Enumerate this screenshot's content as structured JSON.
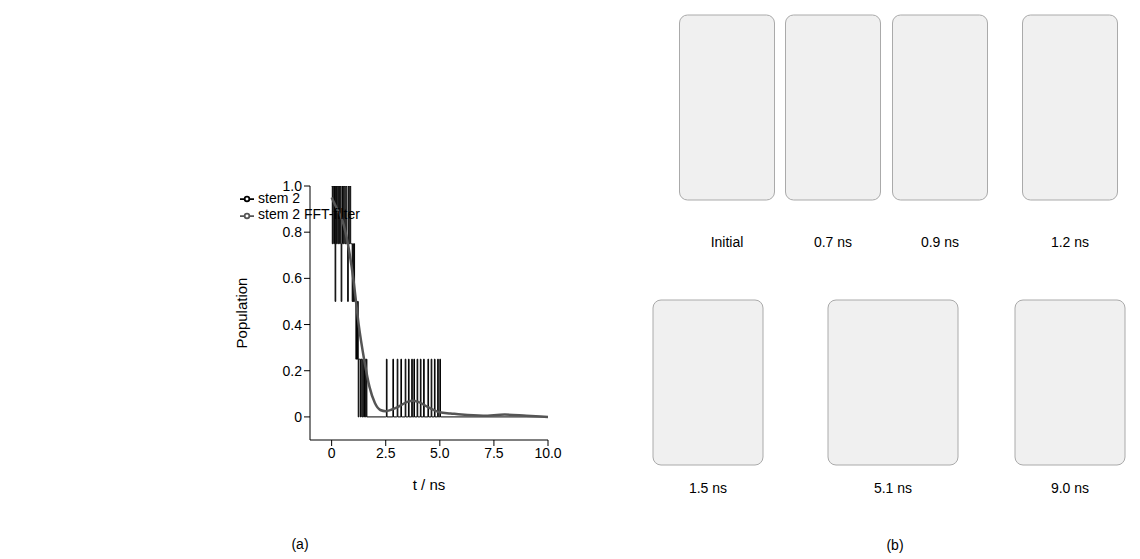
{
  "chart_data": {
    "type": "line",
    "xlabel": "t / ns",
    "ylabel": "Population",
    "xlim": [
      -1,
      10
    ],
    "xticks": [
      0,
      2.5,
      {
        "value": 5,
        "label": "5.0"
      },
      7.5,
      {
        "value": 10,
        "label": "10.0"
      }
    ],
    "ylim": [
      -0.1,
      1.0
    ],
    "yticks": [
      0,
      0.2,
      0.4,
      0.6,
      0.8,
      {
        "value": 1,
        "label": "1.0"
      }
    ],
    "grid": false,
    "legend": "top",
    "series": [
      {
        "name": "stem 2",
        "color": "#000000",
        "line_style": "step",
        "x": [
          0,
          0.03,
          0.06,
          0.1,
          0.13,
          0.16,
          0.19,
          0.22,
          0.26,
          0.3,
          0.33,
          0.37,
          0.4,
          0.44,
          0.47,
          0.5,
          0.54,
          0.58,
          0.62,
          0.66,
          0.7,
          0.74,
          0.77,
          0.8,
          0.84,
          0.88,
          0.92,
          0.95,
          0.98,
          1.0,
          1.03,
          1.06,
          1.1,
          1.12,
          1.15,
          1.18,
          1.2,
          1.23,
          1.26,
          1.3,
          1.33,
          1.36,
          1.4,
          1.44,
          1.48,
          1.52,
          1.56,
          1.6,
          1.63,
          2.5,
          2.53,
          2.56,
          2.8,
          2.83,
          2.86,
          3.0,
          3.03,
          3.06,
          3.2,
          3.23,
          3.4,
          3.43,
          3.55,
          3.58,
          3.7,
          3.73,
          3.8,
          3.83,
          3.95,
          3.98,
          4.1,
          4.13,
          4.25,
          4.28,
          4.45,
          4.48,
          4.6,
          4.63,
          4.75,
          4.78,
          4.9,
          4.93,
          5.0,
          5.03,
          10.0
        ],
        "values": [
          1.0,
          0.75,
          1.0,
          0.75,
          1.0,
          0.5,
          1.0,
          0.75,
          1.0,
          0.75,
          1.0,
          0.75,
          1.0,
          0.5,
          0.75,
          1.0,
          0.75,
          1.0,
          0.75,
          1.0,
          0.75,
          0.5,
          1.0,
          0.75,
          1.0,
          0.75,
          0.75,
          0.5,
          0.75,
          0.5,
          0.75,
          0.5,
          0.5,
          0.25,
          0.5,
          0.25,
          0.5,
          0.0,
          0.25,
          0.25,
          0.0,
          0.25,
          0.0,
          0.25,
          0.0,
          0.25,
          0.0,
          0.25,
          0.0,
          0.0,
          0.25,
          0.0,
          0.0,
          0.25,
          0.0,
          0.0,
          0.25,
          0.0,
          0.25,
          0.0,
          0.25,
          0.0,
          0.25,
          0.0,
          0.25,
          0.0,
          0.25,
          0.0,
          0.25,
          0.0,
          0.25,
          0.0,
          0.25,
          0.0,
          0.25,
          0.0,
          0.25,
          0.0,
          0.25,
          0.0,
          0.25,
          0.0,
          0.25,
          0.0,
          0.0
        ]
      },
      {
        "name": "stem 2 FFT-filter",
        "color": "#555555",
        "line_style": "smooth",
        "x": [
          0,
          0.25,
          0.5,
          0.75,
          1.0,
          1.25,
          1.5,
          1.75,
          2.0,
          2.25,
          2.5,
          3.0,
          3.5,
          3.75,
          4.0,
          4.5,
          5.0,
          5.5,
          6.0,
          7.0,
          8.0,
          9.0,
          10.0
        ],
        "values": [
          0.95,
          0.9,
          0.85,
          0.75,
          0.6,
          0.4,
          0.25,
          0.13,
          0.06,
          0.03,
          0.025,
          0.04,
          0.065,
          0.07,
          0.065,
          0.04,
          0.02,
          0.015,
          0.01,
          0.005,
          0.01,
          0.005,
          0.0
        ]
      }
    ]
  },
  "panel_a_label": "(a)",
  "panel_b": {
    "label": "(b)",
    "frames": [
      "Initial",
      "0.7 ns",
      "0.9 ns",
      "1.2 ns",
      "1.5 ns",
      "5.1 ns",
      "9.0 ns"
    ]
  }
}
